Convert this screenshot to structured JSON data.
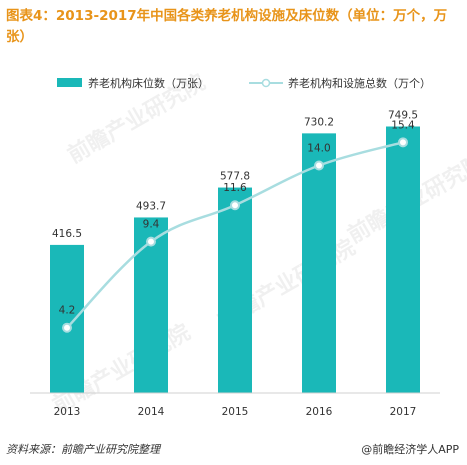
{
  "title": "图表4：2013-2017年中国各类养老机构设施及床位数（单位：万个，万张）",
  "source": "资料来源：前瞻产业研究院整理",
  "brand": "@前瞻经济学人APP",
  "watermark": "前瞻产业研究院",
  "colors": {
    "bar": "#1ab8b8",
    "line": "#a8dde0",
    "marker": "#ffffff",
    "title": "#e8941a"
  },
  "chart_data": {
    "type": "bar+line",
    "categories": [
      "2013",
      "2014",
      "2015",
      "2016",
      "2017"
    ],
    "series": [
      {
        "name": "养老机构床位数（万张）",
        "type": "bar",
        "values": [
          416.5,
          493.7,
          577.8,
          730.2,
          749.5
        ]
      },
      {
        "name": "养老机构和设施总数（万个）",
        "type": "line",
        "values": [
          4.2,
          9.4,
          11.6,
          14.0,
          15.4
        ]
      }
    ],
    "legend_position": "top",
    "grid": false
  }
}
